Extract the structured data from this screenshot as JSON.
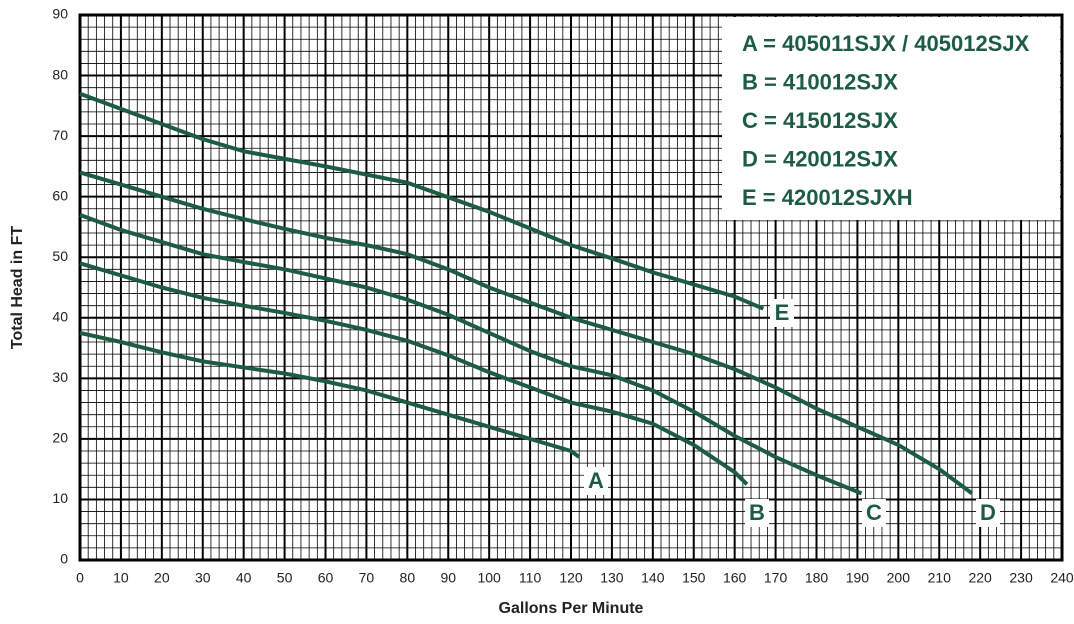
{
  "chart_data": {
    "type": "line",
    "xlabel": "Gallons Per Minute",
    "ylabel": "Total Head in FT",
    "xlim": [
      0,
      240
    ],
    "ylim": [
      0,
      90
    ],
    "xticks": [
      0,
      10,
      20,
      30,
      40,
      50,
      60,
      70,
      80,
      90,
      100,
      110,
      120,
      130,
      140,
      150,
      160,
      170,
      180,
      190,
      200,
      210,
      220,
      230,
      240
    ],
    "yticks": [
      0,
      10,
      20,
      30,
      40,
      50,
      60,
      70,
      80,
      90
    ],
    "grid": true,
    "legend_position": "upper right",
    "series": [
      {
        "name": "A",
        "legend_text": "A = 405011SJX / 405012SJX",
        "color": "#1d5c43",
        "x": [
          0,
          10,
          20,
          30,
          40,
          50,
          60,
          70,
          80,
          90,
          100,
          110,
          120,
          122
        ],
        "values": [
          37.5,
          36,
          34.3,
          32.8,
          31.8,
          30.8,
          29.5,
          28,
          26,
          24,
          22,
          20,
          18,
          17
        ]
      },
      {
        "name": "B",
        "legend_text": "B = 410012SJX",
        "color": "#1d5c43",
        "x": [
          0,
          10,
          20,
          30,
          40,
          50,
          60,
          70,
          80,
          90,
          100,
          110,
          120,
          130,
          140,
          150,
          160,
          163
        ],
        "values": [
          49,
          47,
          45,
          43.3,
          42,
          40.8,
          39.5,
          38,
          36.2,
          33.8,
          31,
          28.5,
          26,
          24.5,
          22.5,
          19,
          14.5,
          12.5
        ]
      },
      {
        "name": "C",
        "legend_text": "C = 415012SJX",
        "color": "#1d5c43",
        "x": [
          0,
          10,
          20,
          30,
          40,
          50,
          60,
          70,
          80,
          90,
          100,
          110,
          120,
          130,
          140,
          150,
          160,
          170,
          180,
          191
        ],
        "values": [
          57,
          54.5,
          52.5,
          50.5,
          49.2,
          48,
          46.5,
          45,
          43,
          40.5,
          37.5,
          34.5,
          32,
          30.5,
          28,
          24.5,
          20.5,
          17,
          14,
          11
        ]
      },
      {
        "name": "D",
        "legend_text": "D = 420012SJX",
        "color": "#1d5c43",
        "x": [
          0,
          10,
          20,
          30,
          40,
          50,
          60,
          70,
          80,
          90,
          100,
          110,
          120,
          130,
          140,
          150,
          160,
          170,
          180,
          190,
          200,
          210,
          218
        ],
        "values": [
          64,
          62,
          60,
          58,
          56.3,
          54.7,
          53.2,
          52,
          50.5,
          48,
          45,
          42.5,
          40,
          38,
          36,
          34,
          31.5,
          28.5,
          25,
          22,
          19,
          15,
          11
        ]
      },
      {
        "name": "E",
        "legend_text": "E = 420012SJXH",
        "color": "#1d5c43",
        "x": [
          0,
          20,
          30,
          40,
          60,
          80,
          100,
          120,
          130,
          140,
          160,
          167
        ],
        "values": [
          77,
          72,
          69.5,
          67.5,
          65,
          62.3,
          57.5,
          52,
          49.8,
          47.5,
          43.5,
          41.5
        ]
      }
    ]
  }
}
